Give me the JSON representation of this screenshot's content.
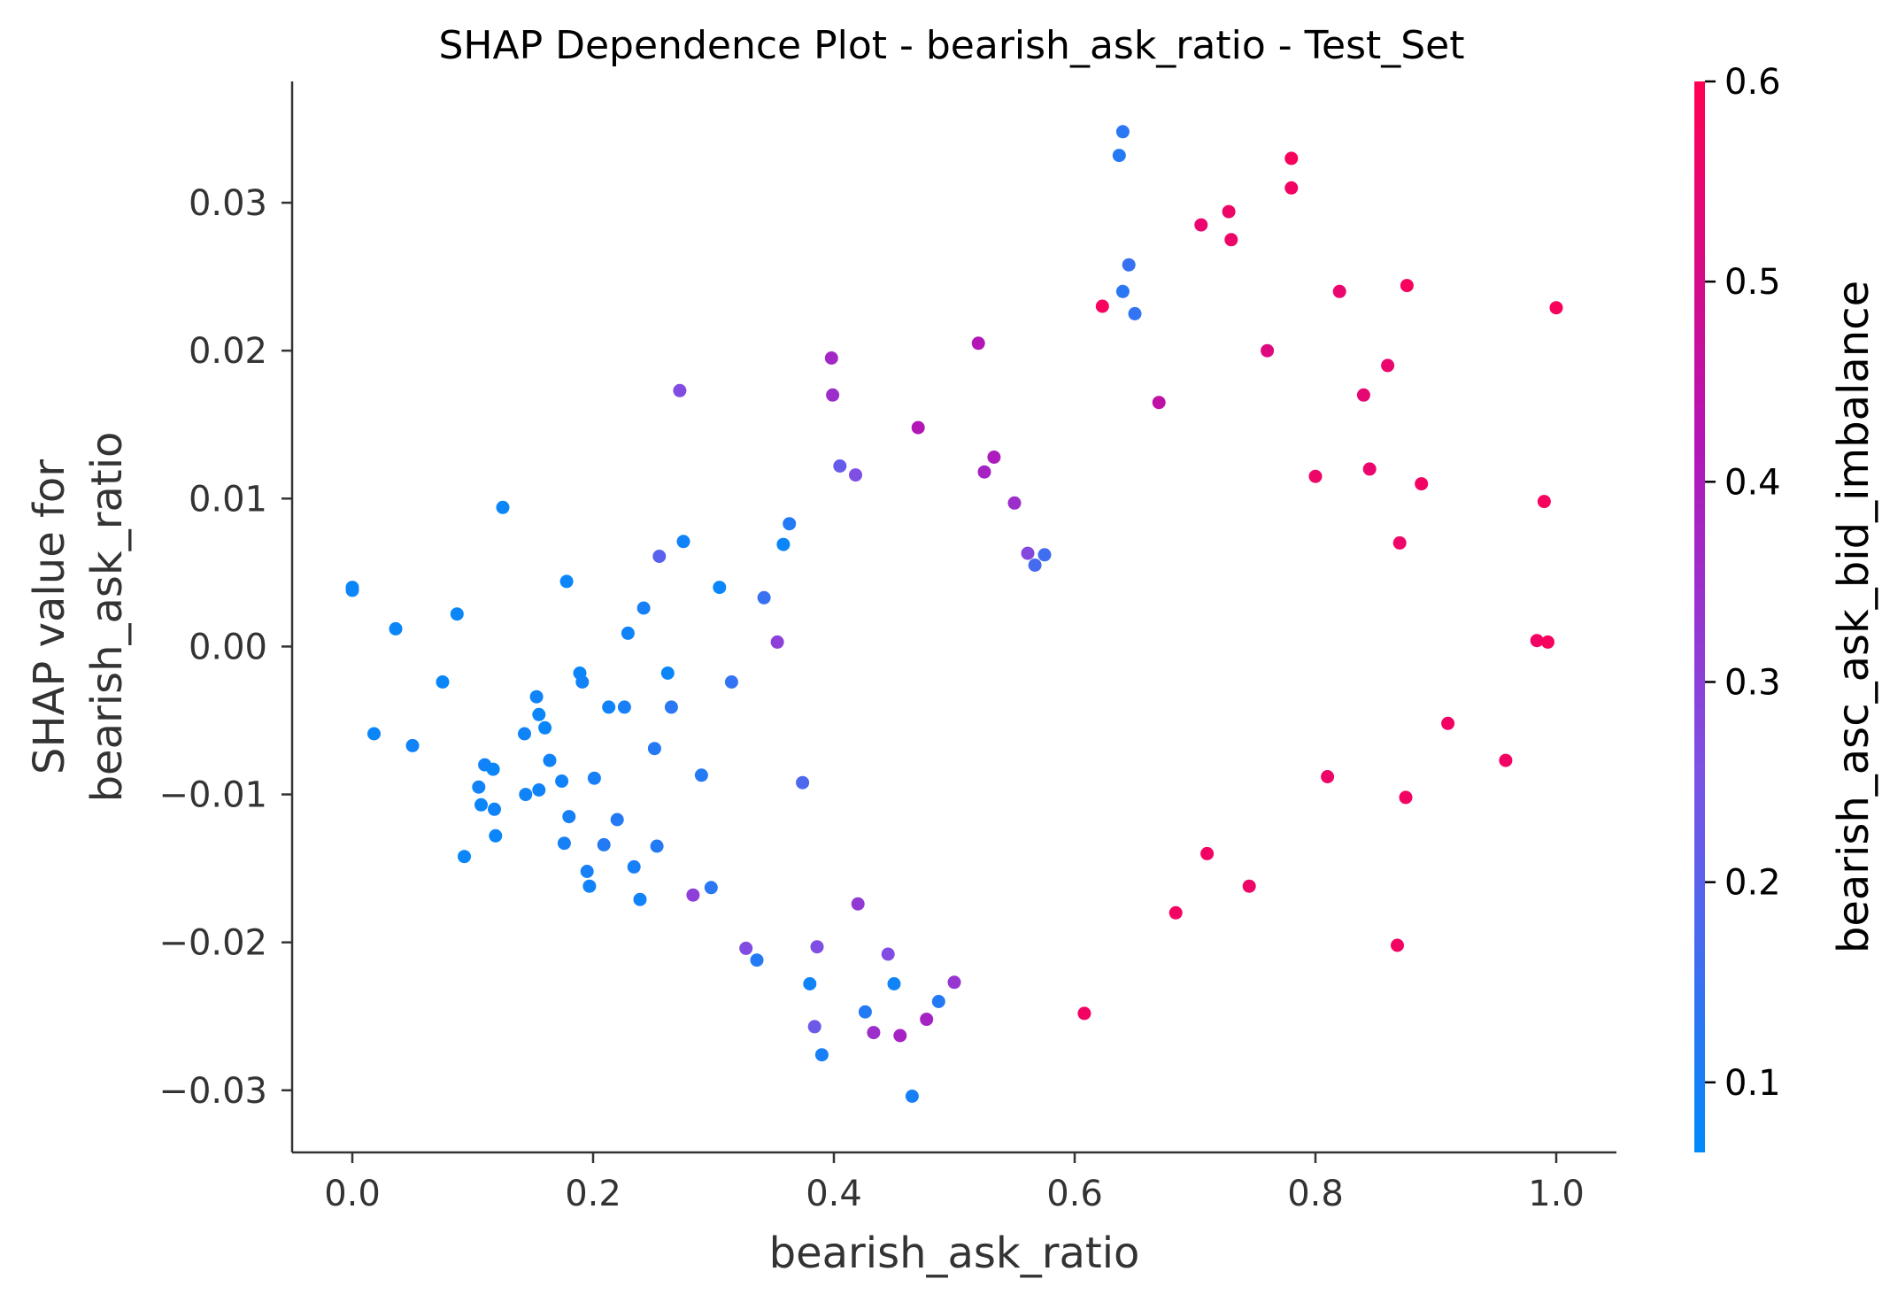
{
  "chart_data": {
    "type": "scatter",
    "title": "SHAP Dependence Plot - bearish_ask_ratio - Test_Set",
    "xlabel": "bearish_ask_ratio",
    "ylabel_lines": [
      "SHAP value for",
      "bearish_ask_ratio"
    ],
    "xlim": [
      -0.05,
      1.05
    ],
    "ylim": [
      -0.0342,
      0.0382
    ],
    "x_ticks": [
      0.0,
      0.2,
      0.4,
      0.6,
      0.8,
      1.0
    ],
    "x_tick_labels": [
      "0.0",
      "0.2",
      "0.4",
      "0.6",
      "0.8",
      "1.0"
    ],
    "y_ticks": [
      -0.03,
      -0.02,
      -0.01,
      0.0,
      0.01,
      0.02,
      0.03
    ],
    "y_tick_labels": [
      "−0.03",
      "−0.02",
      "−0.01",
      "0.00",
      "0.01",
      "0.02",
      "0.03"
    ],
    "grid": false,
    "colorbar": {
      "label": "bearish_asc_ask_bid_imbalance",
      "range": [
        0.065,
        0.6
      ],
      "ticks": [
        0.1,
        0.2,
        0.3,
        0.4,
        0.5,
        0.6
      ],
      "tick_labels": [
        "0.1",
        "0.2",
        "0.3",
        "0.4",
        "0.5",
        "0.6"
      ],
      "colors": [
        "#008afb",
        "#7c52e6",
        "#b315b8",
        "#ff0052"
      ]
    },
    "points": [
      [
        0.0,
        0.0038,
        0.08
      ],
      [
        0.0,
        0.004,
        0.08
      ],
      [
        0.018,
        -0.0059,
        0.08
      ],
      [
        0.036,
        0.0012,
        0.08
      ],
      [
        0.05,
        -0.0067,
        0.09
      ],
      [
        0.075,
        -0.0024,
        0.08
      ],
      [
        0.087,
        0.0022,
        0.08
      ],
      [
        0.093,
        -0.0142,
        0.08
      ],
      [
        0.105,
        -0.0095,
        0.09
      ],
      [
        0.107,
        -0.0107,
        0.08
      ],
      [
        0.11,
        -0.008,
        0.09
      ],
      [
        0.117,
        -0.0083,
        0.08
      ],
      [
        0.118,
        -0.011,
        0.09
      ],
      [
        0.119,
        -0.0128,
        0.08
      ],
      [
        0.125,
        0.0094,
        0.08
      ],
      [
        0.143,
        -0.0059,
        0.09
      ],
      [
        0.144,
        -0.01,
        0.09
      ],
      [
        0.153,
        -0.0034,
        0.09
      ],
      [
        0.155,
        -0.0046,
        0.08
      ],
      [
        0.155,
        -0.0097,
        0.09
      ],
      [
        0.16,
        -0.0055,
        0.08
      ],
      [
        0.164,
        -0.0077,
        0.09
      ],
      [
        0.174,
        -0.0091,
        0.09
      ],
      [
        0.176,
        -0.0133,
        0.1
      ],
      [
        0.178,
        0.0044,
        0.08
      ],
      [
        0.18,
        -0.0115,
        0.1
      ],
      [
        0.189,
        -0.0018,
        0.08
      ],
      [
        0.191,
        -0.0024,
        0.09
      ],
      [
        0.195,
        -0.0152,
        0.1
      ],
      [
        0.197,
        -0.0162,
        0.09
      ],
      [
        0.201,
        -0.0089,
        0.1
      ],
      [
        0.209,
        -0.0134,
        0.12
      ],
      [
        0.213,
        -0.0041,
        0.09
      ],
      [
        0.22,
        -0.0117,
        0.12
      ],
      [
        0.226,
        -0.0041,
        0.1
      ],
      [
        0.229,
        0.0009,
        0.09
      ],
      [
        0.234,
        -0.0149,
        0.1
      ],
      [
        0.239,
        -0.0171,
        0.09
      ],
      [
        0.242,
        0.0026,
        0.1
      ],
      [
        0.251,
        -0.0069,
        0.12
      ],
      [
        0.253,
        -0.0135,
        0.12
      ],
      [
        0.255,
        0.0061,
        0.2
      ],
      [
        0.262,
        -0.0018,
        0.08
      ],
      [
        0.265,
        -0.0041,
        0.13
      ],
      [
        0.272,
        0.0173,
        0.27
      ],
      [
        0.275,
        0.0071,
        0.09
      ],
      [
        0.283,
        -0.0168,
        0.3
      ],
      [
        0.29,
        -0.0087,
        0.12
      ],
      [
        0.298,
        -0.0163,
        0.13
      ],
      [
        0.305,
        0.004,
        0.08
      ],
      [
        0.315,
        -0.0024,
        0.14
      ],
      [
        0.327,
        -0.0204,
        0.27
      ],
      [
        0.336,
        -0.0212,
        0.12
      ],
      [
        0.342,
        0.0033,
        0.15
      ],
      [
        0.353,
        0.0003,
        0.3
      ],
      [
        0.358,
        0.0069,
        0.08
      ],
      [
        0.363,
        0.0083,
        0.12
      ],
      [
        0.374,
        -0.0092,
        0.18
      ],
      [
        0.38,
        -0.0228,
        0.09
      ],
      [
        0.384,
        -0.0257,
        0.23
      ],
      [
        0.386,
        -0.0203,
        0.26
      ],
      [
        0.39,
        -0.0276,
        0.1
      ],
      [
        0.398,
        0.0195,
        0.37
      ],
      [
        0.399,
        0.017,
        0.35
      ],
      [
        0.405,
        0.0122,
        0.22
      ],
      [
        0.418,
        0.0116,
        0.26
      ],
      [
        0.42,
        -0.0174,
        0.32
      ],
      [
        0.426,
        -0.0247,
        0.12
      ],
      [
        0.433,
        -0.0261,
        0.35
      ],
      [
        0.445,
        -0.0208,
        0.27
      ],
      [
        0.45,
        -0.0228,
        0.09
      ],
      [
        0.455,
        -0.0263,
        0.38
      ],
      [
        0.465,
        -0.0304,
        0.1
      ],
      [
        0.47,
        0.0148,
        0.42
      ],
      [
        0.477,
        -0.0252,
        0.38
      ],
      [
        0.487,
        -0.024,
        0.12
      ],
      [
        0.5,
        -0.0227,
        0.33
      ],
      [
        0.52,
        0.0205,
        0.42
      ],
      [
        0.525,
        0.0118,
        0.38
      ],
      [
        0.533,
        0.0128,
        0.4
      ],
      [
        0.55,
        0.0097,
        0.35
      ],
      [
        0.561,
        0.0063,
        0.28
      ],
      [
        0.567,
        0.0055,
        0.17
      ],
      [
        0.575,
        0.0062,
        0.16
      ],
      [
        0.608,
        -0.0248,
        0.57
      ],
      [
        0.623,
        0.023,
        0.58
      ],
      [
        0.637,
        0.0332,
        0.12
      ],
      [
        0.64,
        0.0348,
        0.13
      ],
      [
        0.64,
        0.024,
        0.13
      ],
      [
        0.645,
        0.0258,
        0.15
      ],
      [
        0.65,
        0.0225,
        0.14
      ],
      [
        0.67,
        0.0165,
        0.45
      ],
      [
        0.684,
        -0.018,
        0.57
      ],
      [
        0.705,
        0.0285,
        0.55
      ],
      [
        0.71,
        -0.014,
        0.57
      ],
      [
        0.728,
        0.0294,
        0.56
      ],
      [
        0.73,
        0.0275,
        0.56
      ],
      [
        0.745,
        -0.0162,
        0.56
      ],
      [
        0.76,
        0.02,
        0.52
      ],
      [
        0.78,
        0.033,
        0.58
      ],
      [
        0.78,
        0.031,
        0.57
      ],
      [
        0.8,
        0.0115,
        0.56
      ],
      [
        0.81,
        -0.0088,
        0.56
      ],
      [
        0.82,
        0.024,
        0.55
      ],
      [
        0.84,
        0.017,
        0.54
      ],
      [
        0.845,
        0.012,
        0.55
      ],
      [
        0.86,
        0.019,
        0.55
      ],
      [
        0.868,
        -0.0202,
        0.57
      ],
      [
        0.87,
        0.007,
        0.56
      ],
      [
        0.875,
        -0.0102,
        0.57
      ],
      [
        0.876,
        0.0244,
        0.58
      ],
      [
        0.888,
        0.011,
        0.57
      ],
      [
        0.91,
        -0.0052,
        0.57
      ],
      [
        0.958,
        -0.0077,
        0.57
      ],
      [
        0.984,
        0.0004,
        0.57
      ],
      [
        0.993,
        0.0003,
        0.58
      ],
      [
        0.99,
        0.0098,
        0.58
      ],
      [
        1.0,
        0.0229,
        0.58
      ]
    ]
  }
}
